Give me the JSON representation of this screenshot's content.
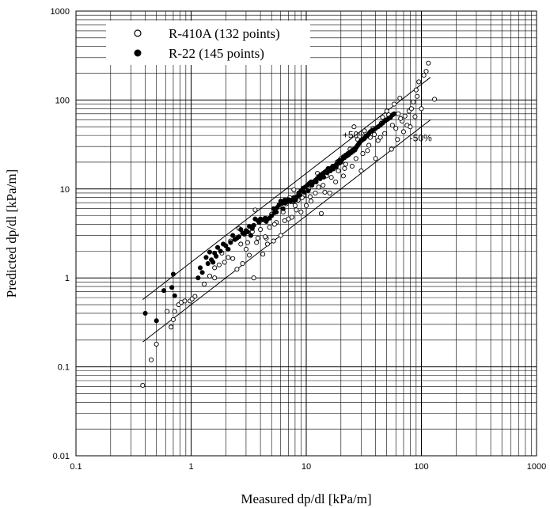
{
  "chart_data": {
    "type": "scatter",
    "xlabel": "Measured dp/dl [kPa/m]",
    "ylabel": "Predicted dp/dl [kPa/m]",
    "x_scale": "log",
    "y_scale": "log",
    "xlim": [
      0.1,
      1000
    ],
    "ylim": [
      0.01,
      1000
    ],
    "x_tick_labels": [
      "0.1",
      "1",
      "10",
      "100",
      "1000"
    ],
    "y_tick_labels": [
      "0.01",
      "0.1",
      "1",
      "10",
      "100",
      "1000"
    ],
    "grid": true,
    "legend_position": "top-left",
    "series": [
      {
        "name": "R-410A (132 points)",
        "marker": "open-circle",
        "points": [
          [
            0.38,
            0.062
          ],
          [
            0.45,
            0.12
          ],
          [
            0.5,
            0.18
          ],
          [
            0.62,
            0.42
          ],
          [
            0.67,
            0.28
          ],
          [
            0.7,
            0.34
          ],
          [
            0.72,
            0.42
          ],
          [
            0.78,
            0.5
          ],
          [
            0.82,
            0.53
          ],
          [
            0.88,
            0.55
          ],
          [
            0.98,
            0.55
          ],
          [
            1.02,
            0.58
          ],
          [
            1.08,
            0.62
          ],
          [
            1.3,
            0.85
          ],
          [
            1.45,
            1.05
          ],
          [
            1.6,
            1.0
          ],
          [
            1.75,
            1.4
          ],
          [
            1.95,
            1.5
          ],
          [
            2.1,
            1.7
          ],
          [
            2.3,
            1.65
          ],
          [
            2.5,
            1.25
          ],
          [
            2.6,
            3.6
          ],
          [
            2.8,
            1.45
          ],
          [
            3.0,
            2.1
          ],
          [
            3.2,
            1.8
          ],
          [
            3.5,
            1.0
          ],
          [
            3.6,
            5.8
          ],
          [
            3.8,
            2.8
          ],
          [
            4.0,
            3.5
          ],
          [
            4.2,
            1.85
          ],
          [
            4.5,
            2.8
          ],
          [
            4.8,
            3.7
          ],
          [
            5.0,
            5.2
          ],
          [
            5.2,
            2.6
          ],
          [
            5.5,
            4.2
          ],
          [
            5.8,
            6.3
          ],
          [
            6.0,
            3.0
          ],
          [
            6.3,
            5.5
          ],
          [
            6.7,
            6.8
          ],
          [
            7.0,
            4.6
          ],
          [
            7.2,
            8.0
          ],
          [
            7.5,
            4.8
          ],
          [
            7.8,
            9.8
          ],
          [
            8.0,
            6.5
          ],
          [
            8.5,
            7.5
          ],
          [
            9.0,
            5.5
          ],
          [
            9.5,
            8.5
          ],
          [
            10.0,
            6.5
          ],
          [
            10.5,
            10.0
          ],
          [
            11.0,
            7.3
          ],
          [
            11.5,
            12.0
          ],
          [
            12.0,
            9.0
          ],
          [
            12.5,
            15.0
          ],
          [
            13.5,
            5.3
          ],
          [
            14.0,
            11.0
          ],
          [
            15.0,
            14.0
          ],
          [
            16.0,
            9.0
          ],
          [
            17.0,
            18.0
          ],
          [
            18.0,
            12.0
          ],
          [
            19.0,
            16.0
          ],
          [
            20.0,
            22.0
          ],
          [
            21.0,
            14.0
          ],
          [
            22.0,
            19.0
          ],
          [
            24.0,
            28.0
          ],
          [
            25.0,
            18.0
          ],
          [
            26.0,
            50.0
          ],
          [
            27.0,
            22.0
          ],
          [
            28.0,
            36.0
          ],
          [
            30.0,
            16.0
          ],
          [
            32.0,
            45.0
          ],
          [
            34.0,
            27.0
          ],
          [
            36.0,
            38.0
          ],
          [
            38.0,
            48.0
          ],
          [
            40.0,
            22.0
          ],
          [
            42.0,
            35.0
          ],
          [
            45.0,
            55.0
          ],
          [
            48.0,
            42.0
          ],
          [
            50.0,
            75.0
          ],
          [
            55.0,
            28.0
          ],
          [
            58.0,
            90.0
          ],
          [
            60.0,
            48.0
          ],
          [
            62.0,
            36.0
          ],
          [
            65.0,
            105.0
          ],
          [
            68.0,
            58.0
          ],
          [
            70.0,
            44.0
          ],
          [
            75.0,
            52.0
          ],
          [
            78.0,
            75.0
          ],
          [
            80.0,
            50.0
          ],
          [
            85.0,
            95.0
          ],
          [
            88.0,
            65.0
          ],
          [
            90.0,
            130.0
          ],
          [
            95.0,
            160.0
          ],
          [
            100.0,
            80.0
          ],
          [
            105.0,
            190.0
          ],
          [
            110.0,
            210.0
          ],
          [
            115.0,
            260.0
          ],
          [
            130.0,
            102.0
          ],
          [
            1.6,
            1.3
          ],
          [
            1.85,
            1.9
          ],
          [
            2.2,
            2.6
          ],
          [
            2.7,
            2.4
          ],
          [
            3.1,
            2.5
          ],
          [
            3.4,
            3.3
          ],
          [
            4.6,
            2.4
          ],
          [
            5.3,
            4.0
          ],
          [
            6.5,
            4.4
          ],
          [
            8.2,
            5.8
          ],
          [
            9.2,
            8.0
          ],
          [
            10.8,
            8.2
          ],
          [
            12.8,
            10.5
          ],
          [
            14.5,
            9.2
          ],
          [
            16.5,
            13.5
          ],
          [
            18.5,
            20.0
          ],
          [
            21.5,
            17.0
          ],
          [
            23.0,
            24.0
          ],
          [
            29.0,
            33.0
          ],
          [
            31.0,
            25.0
          ],
          [
            35.0,
            31.0
          ],
          [
            39.0,
            41.0
          ],
          [
            44.0,
            38.0
          ],
          [
            46.0,
            64.0
          ],
          [
            52.0,
            68.0
          ],
          [
            56.0,
            52.0
          ],
          [
            63.0,
            70.0
          ],
          [
            66.0,
            62.0
          ],
          [
            72.0,
            66.0
          ],
          [
            82.0,
            80.0
          ],
          [
            92.0,
            110.0
          ],
          [
            3.7,
            2.5
          ],
          [
            4.4,
            2.9
          ],
          [
            7.6,
            7.2
          ],
          [
            11.2,
            11.5
          ]
        ]
      },
      {
        "name": "R-22 (145 points)",
        "marker": "filled-circle",
        "points": [
          [
            0.4,
            0.4
          ],
          [
            0.5,
            0.33
          ],
          [
            0.58,
            0.72
          ],
          [
            0.68,
            0.78
          ],
          [
            0.7,
            1.1
          ],
          [
            0.72,
            0.63
          ],
          [
            1.15,
            1.0
          ],
          [
            1.2,
            1.3
          ],
          [
            1.35,
            1.7
          ],
          [
            1.4,
            1.45
          ],
          [
            1.45,
            1.95
          ],
          [
            1.5,
            1.6
          ],
          [
            1.6,
            1.9
          ],
          [
            1.7,
            2.2
          ],
          [
            1.8,
            2.0
          ],
          [
            1.9,
            2.4
          ],
          [
            2.0,
            2.3
          ],
          [
            2.2,
            2.5
          ],
          [
            2.4,
            2.7
          ],
          [
            2.6,
            2.9
          ],
          [
            2.8,
            3.2
          ],
          [
            3.0,
            3.4
          ],
          [
            3.2,
            3.8
          ],
          [
            3.4,
            3.6
          ],
          [
            3.6,
            4.6
          ],
          [
            3.8,
            4.4
          ],
          [
            4.0,
            4.6
          ],
          [
            4.2,
            4.5
          ],
          [
            4.4,
            4.7
          ],
          [
            4.6,
            4.6
          ],
          [
            4.8,
            4.7
          ],
          [
            5.0,
            5.0
          ],
          [
            5.2,
            6.0
          ],
          [
            5.5,
            5.5
          ],
          [
            5.8,
            6.6
          ],
          [
            6.0,
            7.3
          ],
          [
            6.2,
            6.9
          ],
          [
            6.5,
            7.5
          ],
          [
            6.8,
            7.2
          ],
          [
            7.0,
            7.6
          ],
          [
            7.2,
            7.5
          ],
          [
            7.5,
            7.5
          ],
          [
            7.8,
            8.0
          ],
          [
            8.0,
            7.5
          ],
          [
            8.3,
            8.2
          ],
          [
            8.6,
            9.0
          ],
          [
            9.0,
            9.6
          ],
          [
            9.4,
            10.2
          ],
          [
            9.8,
            10.5
          ],
          [
            10.2,
            11.0
          ],
          [
            10.6,
            11.5
          ],
          [
            11.0,
            12.0
          ],
          [
            11.5,
            11.8
          ],
          [
            12.0,
            12.5
          ],
          [
            12.5,
            13.2
          ],
          [
            13.0,
            14.0
          ],
          [
            13.5,
            14.5
          ],
          [
            14.0,
            15.0
          ],
          [
            14.5,
            15.5
          ],
          [
            15.0,
            16.0
          ],
          [
            15.5,
            17.0
          ],
          [
            16.0,
            16.5
          ],
          [
            16.5,
            17.2
          ],
          [
            17.0,
            18.0
          ],
          [
            17.5,
            17.5
          ],
          [
            18.0,
            18.5
          ],
          [
            18.5,
            19.0
          ],
          [
            19.0,
            20.5
          ],
          [
            19.5,
            21.0
          ],
          [
            20.0,
            20.0
          ],
          [
            21.0,
            23.0
          ],
          [
            22.0,
            24.0
          ],
          [
            23.0,
            25.0
          ],
          [
            24.0,
            26.0
          ],
          [
            25.0,
            27.0
          ],
          [
            26.0,
            28.0
          ],
          [
            27.0,
            29.0
          ],
          [
            28.0,
            31.0
          ],
          [
            29.0,
            33.0
          ],
          [
            30.0,
            35.0
          ],
          [
            31.0,
            36.0
          ],
          [
            32.0,
            37.0
          ],
          [
            33.0,
            39.0
          ],
          [
            34.0,
            40.0
          ],
          [
            35.0,
            42.0
          ],
          [
            36.0,
            44.0
          ],
          [
            37.0,
            45.0
          ],
          [
            38.0,
            46.0
          ],
          [
            40.0,
            48.0
          ],
          [
            42.0,
            50.0
          ],
          [
            44.0,
            52.0
          ],
          [
            46.0,
            55.0
          ],
          [
            48.0,
            58.0
          ],
          [
            50.0,
            60.0
          ],
          [
            52.0,
            62.0
          ],
          [
            54.0,
            64.0
          ],
          [
            56.0,
            68.0
          ],
          [
            58.0,
            70.0
          ],
          [
            2.3,
            3.0
          ],
          [
            2.7,
            3.5
          ],
          [
            3.3,
            3.0
          ],
          [
            4.5,
            4.3
          ],
          [
            5.3,
            5.4
          ],
          [
            5.6,
            6.2
          ],
          [
            6.3,
            6.0
          ],
          [
            6.6,
            7.0
          ],
          [
            7.3,
            7.2
          ],
          [
            7.7,
            7.4
          ],
          [
            8.1,
            7.6
          ],
          [
            8.8,
            8.5
          ],
          [
            9.6,
            9.2
          ],
          [
            10.4,
            9.6
          ],
          [
            11.2,
            11.0
          ],
          [
            12.2,
            12.0
          ],
          [
            13.2,
            13.0
          ],
          [
            14.2,
            13.6
          ],
          [
            15.2,
            15.2
          ],
          [
            16.2,
            16.0
          ],
          [
            17.2,
            16.8
          ],
          [
            18.2,
            17.8
          ],
          [
            19.2,
            19.5
          ],
          [
            20.5,
            21.5
          ],
          [
            21.5,
            22.5
          ],
          [
            22.5,
            23.5
          ],
          [
            23.5,
            24.5
          ],
          [
            24.5,
            25.5
          ],
          [
            25.5,
            26.5
          ],
          [
            26.5,
            27.5
          ],
          [
            27.5,
            30.0
          ],
          [
            28.5,
            32.0
          ],
          [
            29.5,
            34.0
          ],
          [
            30.5,
            35.5
          ],
          [
            31.5,
            36.5
          ],
          [
            32.5,
            38.0
          ],
          [
            33.5,
            39.5
          ],
          [
            34.5,
            41.0
          ],
          [
            1.25,
            1.15
          ],
          [
            1.55,
            1.5
          ],
          [
            1.65,
            1.75
          ],
          [
            2.1,
            2.1
          ],
          [
            2.5,
            2.8
          ],
          [
            2.9,
            3.1
          ],
          [
            3.1,
            3.3
          ],
          [
            3.5,
            3.9
          ],
          [
            3.9,
            4.2
          ]
        ]
      }
    ],
    "reference_lines": [
      {
        "label": "+50%",
        "factor": 1.5,
        "x_range": [
          0.38,
          120
        ]
      },
      {
        "label": "-50%",
        "factor": 0.5,
        "x_range": [
          0.38,
          120
        ]
      }
    ]
  }
}
